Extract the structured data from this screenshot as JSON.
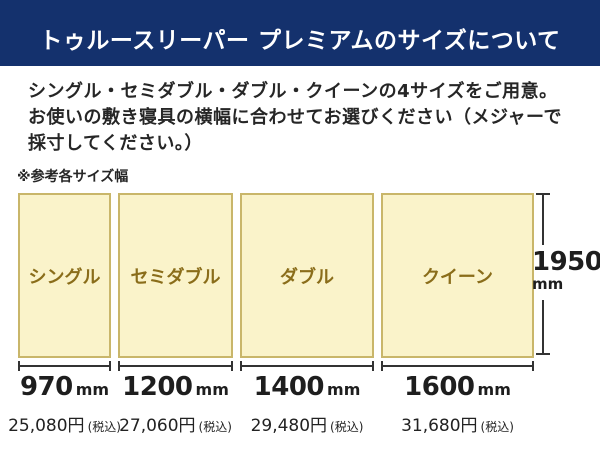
{
  "header": {
    "title": "トゥルースリーパー プレミアムのサイズについて"
  },
  "intro": {
    "text": "シングル・セミダブル・ダブル・クイーンの4サイズをご用意。\nお使いの敷き寝具の横幅に合わせてお選びください（メジャーで\n採寸してください。）"
  },
  "reference_label": "※参考各サイズ幅",
  "sizes": [
    {
      "name": "シングル",
      "width_mm": 970,
      "width_label": "970",
      "unit": "mm",
      "price": "25,080円",
      "tax_note": "(税込)"
    },
    {
      "name": "セミダブル",
      "width_mm": 1200,
      "width_label": "1200",
      "unit": "mm",
      "price": "27,060円",
      "tax_note": "(税込)"
    },
    {
      "name": "ダブル",
      "width_mm": 1400,
      "width_label": "1400",
      "unit": "mm",
      "price": "29,480円",
      "tax_note": "(税込)"
    },
    {
      "name": "クイーン",
      "width_mm": 1600,
      "width_label": "1600",
      "unit": "mm",
      "price": "31,680円",
      "tax_note": "(税込)"
    }
  ],
  "height_measure": {
    "value": "1950",
    "unit": "mm"
  },
  "colors": {
    "header_bg": "#14316d",
    "box_fill": "#faf3ca",
    "box_border": "#c9b66a",
    "box_label": "#8a6d1a",
    "line": "#333333",
    "text": "#262626"
  }
}
